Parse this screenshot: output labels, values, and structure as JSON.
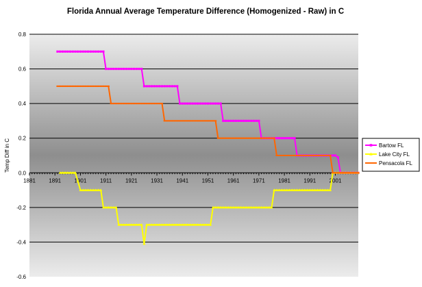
{
  "chart_data": {
    "type": "line",
    "title": "Florida Annual Average Temperature Difference (Homogenized - Raw) in C",
    "xlabel": "",
    "ylabel": "Temp Diff in C",
    "xlim": [
      1881,
      2010
    ],
    "ylim": [
      -0.6,
      0.8
    ],
    "x_ticks": [
      1881,
      1891,
      1901,
      1911,
      1921,
      1931,
      1941,
      1951,
      1961,
      1971,
      1981,
      1991,
      2001
    ],
    "y_ticks": [
      -0.6,
      -0.4,
      -0.2,
      0.0,
      0.2,
      0.4,
      0.6,
      0.8
    ],
    "y_tick_labels": [
      "-0.6",
      "-0.4",
      "-0.2",
      "0.0",
      "0.2",
      "0.4",
      "0.6",
      "0.8"
    ],
    "legend_position": "right",
    "series": [
      {
        "name": "Bartow FL",
        "color": "#ff00ff",
        "marker": "square",
        "steps": [
          {
            "from": 1892,
            "to": 1910,
            "value": 0.7
          },
          {
            "from": 1911,
            "to": 1925,
            "value": 0.6
          },
          {
            "from": 1926,
            "to": 1939,
            "value": 0.5
          },
          {
            "from": 1940,
            "to": 1956,
            "value": 0.4
          },
          {
            "from": 1957,
            "to": 1971,
            "value": 0.3
          },
          {
            "from": 1972,
            "to": 1985,
            "value": 0.2
          },
          {
            "from": 1986,
            "to": 2001,
            "value": 0.1
          },
          {
            "from": 2002,
            "to": 2002,
            "value": 0.09
          },
          {
            "from": 2003,
            "to": 2010,
            "value": 0.0
          }
        ]
      },
      {
        "name": "Lake City FL",
        "color": "#ffff00",
        "marker": "triangle",
        "steps": [
          {
            "from": 1893,
            "to": 1899,
            "value": 0.0
          },
          {
            "from": 1900,
            "to": 1900,
            "value": -0.05
          },
          {
            "from": 1901,
            "to": 1909,
            "value": -0.1
          },
          {
            "from": 1910,
            "to": 1915,
            "value": -0.2
          },
          {
            "from": 1916,
            "to": 1925,
            "value": -0.3
          },
          {
            "from": 1926,
            "to": 1926,
            "value": -0.41
          },
          {
            "from": 1927,
            "to": 1952,
            "value": -0.3
          },
          {
            "from": 1953,
            "to": 1976,
            "value": -0.2
          },
          {
            "from": 1977,
            "to": 1999,
            "value": -0.1
          },
          {
            "from": 2000,
            "to": 2010,
            "value": 0.0
          }
        ]
      },
      {
        "name": "Pensacola FL",
        "color": "#ff6600",
        "marker": "dash",
        "steps": [
          {
            "from": 1892,
            "to": 1912,
            "value": 0.5
          },
          {
            "from": 1913,
            "to": 1933,
            "value": 0.4
          },
          {
            "from": 1934,
            "to": 1954,
            "value": 0.3
          },
          {
            "from": 1955,
            "to": 1977,
            "value": 0.2
          },
          {
            "from": 1978,
            "to": 1999,
            "value": 0.1
          },
          {
            "from": 2000,
            "to": 2010,
            "value": 0.0
          }
        ]
      }
    ]
  }
}
